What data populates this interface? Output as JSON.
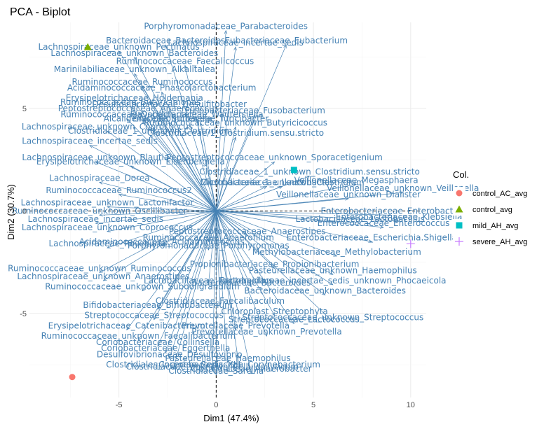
{
  "chart_data": {
    "type": "scatter",
    "title": "PCA - Biplot",
    "xlabel": "Dim1 (47.4%)",
    "ylabel": "Dim2 (30.7%)",
    "xlim": [
      -9.6,
      10.8
    ],
    "ylim": [
      -9.1,
      9.2
    ],
    "xticks": [
      -5,
      0,
      5,
      10
    ],
    "yticks": [
      -5,
      0,
      5
    ],
    "grid": true,
    "reference_lines": {
      "x": 0,
      "y": 0,
      "style": "dashed"
    },
    "legend": {
      "title": "Col.",
      "placement": "right",
      "entries": [
        {
          "label": "control_AC_avg",
          "color": "#F8766D",
          "shape": "circle"
        },
        {
          "label": "control_avg",
          "color": "#7CAE00",
          "shape": "triangle"
        },
        {
          "label": "mild_AH_avg",
          "color": "#00BFC4",
          "shape": "square"
        },
        {
          "label": "severe_AH_avg",
          "color": "#C77CFF",
          "shape": "plus"
        }
      ]
    },
    "individuals": [
      {
        "name": "control_AC_avg",
        "x": -7.4,
        "y": -8.1
      },
      {
        "name": "control_avg",
        "x": -6.6,
        "y": 8.0
      },
      {
        "name": "mild_AH_avg",
        "x": 4.0,
        "y": 2.0
      },
      {
        "name": "severe_AH_avg",
        "x": 10.0,
        "y": -1.6
      }
    ],
    "variables": [
      {
        "label": "Porphyromonadaceae_Parabacteroides",
        "x": 0.5,
        "y": 8.8
      },
      {
        "label": "Bacteroidaceae_Bacteroides",
        "x": -2.6,
        "y": 8.1
      },
      {
        "label": "Eubacteriaceae_Eubacterium",
        "x": 3.6,
        "y": 8.1
      },
      {
        "label": "Lachnospiraceae_incertae_sedis",
        "x": 1.0,
        "y": 8.0
      },
      {
        "label": "Lachnospiraceae_unknown_Pectinatus",
        "x": -5.0,
        "y": 7.8
      },
      {
        "label": "Lachnospiraceae_unknown_Bacteroides",
        "x": -4.2,
        "y": 7.5
      },
      {
        "label": "Ruminococcaceae_Faecalicoccus",
        "x": -1.6,
        "y": 7.1
      },
      {
        "label": "Marinilabiliaceae_unknown_Alkalitalea",
        "x": -4.2,
        "y": 6.7
      },
      {
        "label": "Ruminococcaceae_Ruminococcus",
        "x": -3.8,
        "y": 6.1
      },
      {
        "label": "Acidaminococcaceae_Phascolarctobacterium",
        "x": -2.8,
        "y": 5.8
      },
      {
        "label": "Erysipelotrichaceae_Holdemania",
        "x": -4.2,
        "y": 5.3
      },
      {
        "label": "Ruminococcaceae_Butyricimonas",
        "x": -4.4,
        "y": 5.1
      },
      {
        "label": "Desulfovibrionaceae_Desulfitobacter",
        "x": -2.4,
        "y": 5.0
      },
      {
        "label": "Peptostreptococcaceae_Anaerococcus",
        "x": -4.0,
        "y": 4.8
      },
      {
        "label": "Ruminococcaceae_Oscillibacter",
        "x": -4.6,
        "y": 4.5
      },
      {
        "label": "Flavobacteriaceae_Wautersiella",
        "x": -1.0,
        "y": 4.5
      },
      {
        "label": "Fusobacteriaceae_Fusobacterium",
        "x": 2.0,
        "y": 4.7
      },
      {
        "label": "Alcaligenaceae_Sutterella",
        "x": -3.0,
        "y": 4.3
      },
      {
        "label": "Erysipelotrichaceae_Turicibacter",
        "x": -0.8,
        "y": 4.3
      },
      {
        "label": "Ruminococcaceae_unknown_Butyricicoccus",
        "x": 1.0,
        "y": 4.1
      },
      {
        "label": "Lachnospiraceae_unknown_Coprococcus",
        "x": -5.6,
        "y": 3.9
      },
      {
        "label": "Clostridiaceae_1_unknown_Clostridium",
        "x": -3.4,
        "y": 3.7
      },
      {
        "label": "Clostridiaceae/1_Clostridium.sensu.stricto",
        "x": 1.0,
        "y": 3.6
      },
      {
        "label": "Lachnospiraceae_incertae_sedis",
        "x": -6.5,
        "y": 3.2
      },
      {
        "label": "Lachnospiraceae_unknown_Blautia",
        "x": -6.2,
        "y": 2.4
      },
      {
        "label": "Peptostreptococcaceae_unknown_Sporacetigenium",
        "x": 3.0,
        "y": 2.4
      },
      {
        "label": "Erysipelotrichaceae_unknown_Eisenbergiella",
        "x": -4.4,
        "y": 2.2
      },
      {
        "label": "Clostridiaceae_1_unknown_Clostridium.sensu.stricto",
        "x": 4.8,
        "y": 1.7
      },
      {
        "label": "Lachnospiraceae_Dorea",
        "x": -6.0,
        "y": 1.4
      },
      {
        "label": "Microbacteriaceae_Leucobacter",
        "x": 2.6,
        "y": 1.2
      },
      {
        "label": "Clostridiaceae_1_unknown_Clostridium",
        "x": 3.4,
        "y": 1.2
      },
      {
        "label": "Veillonellaceae_Megasphaera",
        "x": 7.2,
        "y": 1.3
      },
      {
        "label": "Ruminococcaceae_Ruminococcus2",
        "x": -5.0,
        "y": 0.8
      },
      {
        "label": "Veillonellaceae_unknown_Veillonella",
        "x": 9.6,
        "y": 0.9
      },
      {
        "label": "Veillonellaceae_unknown_Dialister",
        "x": 6.8,
        "y": 0.6
      },
      {
        "label": "Lachnospiraceae_unknown_Lactonifactor",
        "x": -5.6,
        "y": 0.2
      },
      {
        "label": "Ruminococcaceae_unknown_Oscillibacter",
        "x": -6.0,
        "y": -0.2
      },
      {
        "label": "Lachnospiraceae_incertae_sedis",
        "x": -6.2,
        "y": -0.6
      },
      {
        "label": "Lachnospiraceae_unknown_Coprococcus",
        "x": -5.6,
        "y": -1.0
      },
      {
        "label": "Enterobacteriaceae_Enterobacter",
        "x": 9.0,
        "y": -0.2
      },
      {
        "label": "Enterobacteriaceae_Klebsiella",
        "x": 9.4,
        "y": -0.5
      },
      {
        "label": "Lactobacillaceae_Lactobacillus",
        "x": 7.4,
        "y": -0.6
      },
      {
        "label": "Enterococcaceae_Enterococcus",
        "x": 8.6,
        "y": -0.8
      },
      {
        "label": "Peptostreptococcaceae_Anaerostipes",
        "x": 1.6,
        "y": -1.2
      },
      {
        "label": "Enterobacteriaceae_Escherichia.Shigella",
        "x": 8.0,
        "y": -1.5
      },
      {
        "label": "Lachnospiraceae_Roseburia",
        "x": -5.6,
        "y": -1.8
      },
      {
        "label": "Acidaminococcaceae_Acidaminococcus",
        "x": -2.8,
        "y": -1.7
      },
      {
        "label": "Ruminococcaceae_Anaerofilum",
        "x": -0.4,
        "y": -1.5
      },
      {
        "label": "Porphyromonadaceae_Porphyromonas",
        "x": -0.4,
        "y": -1.9
      },
      {
        "label": "Methylobacteriaceae_Methylobacterium",
        "x": 6.2,
        "y": -2.2
      },
      {
        "label": "Propionibacteriaceae_Propionibacterium",
        "x": 3.0,
        "y": -2.8
      },
      {
        "label": "Pasteurellaceae_unknown_Haemophilus",
        "x": 6.0,
        "y": -3.1
      },
      {
        "label": "Ruminococcaceae_unknown_Ruminococcus",
        "x": -6.0,
        "y": -3.0
      },
      {
        "label": "Lachnospiraceae_unknown_Anaerostipes",
        "x": -5.8,
        "y": -3.4
      },
      {
        "label": "Bacteroidaceae_incertae_sedis_unknown_Phocaeicola",
        "x": 6.0,
        "y": -3.6
      },
      {
        "label": "Ruminococcaceae_unknown_Subdoligranulum",
        "x": -3.8,
        "y": -3.9
      },
      {
        "label": "Lactobacillaceae_Lactobacillus",
        "x": -0.4,
        "y": -3.6
      },
      {
        "label": "Bacteroidaceae_Bacteroides",
        "x": 1.8,
        "y": -3.7
      },
      {
        "label": "Bacteroidaceae_unknown_Bacteroides",
        "x": 5.6,
        "y": -4.1
      },
      {
        "label": "Clostridiaceae_Faecalibaculum",
        "x": 0.2,
        "y": -4.6
      },
      {
        "label": "Bifidobacteriaceae_Bifidobacterium",
        "x": -3.0,
        "y": -4.8
      },
      {
        "label": "Streptococcaceae_Streptococcus",
        "x": -3.2,
        "y": -5.3
      },
      {
        "label": "Chloroplast_Streptophyta",
        "x": 3.0,
        "y": -5.1
      },
      {
        "label": "Streptococcaceae_Lactococcus",
        "x": 4.0,
        "y": -5.5
      },
      {
        "label": "Streptococcaceae_unknown_Streptococcus",
        "x": 6.0,
        "y": -5.4
      },
      {
        "label": "Erysipelotrichaceae_Catenibacterium",
        "x": -4.6,
        "y": -5.8
      },
      {
        "label": "Prevotellaceae_Prevotella",
        "x": 1.0,
        "y": -5.8
      },
      {
        "label": "Prevotellaceae_unknown_Prevotella",
        "x": 2.6,
        "y": -6.1
      },
      {
        "label": "Ruminococcaceae_unknown_Faecalibacterium",
        "x": -4.0,
        "y": -6.3
      },
      {
        "label": "Coriobacteriaceae_Collinsella",
        "x": -3.0,
        "y": -6.6
      },
      {
        "label": "Coriobacteriaceae_Eggerthella",
        "x": -2.6,
        "y": -6.9
      },
      {
        "label": "Desulfovibrionaceae_Desulfovibrio",
        "x": -2.4,
        "y": -7.2
      },
      {
        "label": "Pasteurellaceae_Haemophilus",
        "x": 0.6,
        "y": -7.4
      },
      {
        "label": "Clostridiales_Incertae_Sedis_XIII",
        "x": -2.2,
        "y": -7.7
      },
      {
        "label": "Clostridiaceae_unknown_Cellulosilyticum",
        "x": -0.2,
        "y": -7.8
      },
      {
        "label": "Corynebacteriaceae_Corynebacterium",
        "x": 1.2,
        "y": -7.7
      },
      {
        "label": "Clostridiaceae_Sarcina",
        "x": 0.0,
        "y": -8.0
      },
      {
        "label": "Clostridiaceae_Anaerobacter",
        "x": 1.8,
        "y": -7.9
      }
    ]
  }
}
